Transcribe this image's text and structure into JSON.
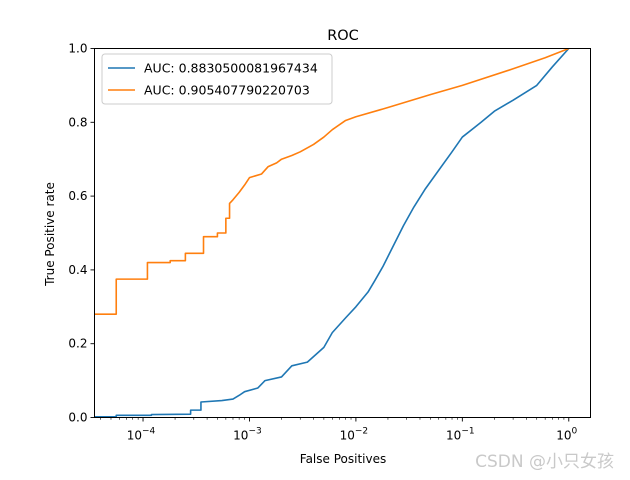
{
  "chart_data": {
    "type": "line",
    "title": "ROC",
    "xlabel": "False Positives",
    "ylabel": "True Positive rate",
    "xscale": "log",
    "xlim": [
      3.5e-05,
      1.6
    ],
    "ylim": [
      0.0,
      1.0
    ],
    "grid": false,
    "legend_position": "top-left",
    "x_ticks": [
      {
        "value": 0.0001,
        "base": "10",
        "exp": "−4"
      },
      {
        "value": 0.001,
        "base": "10",
        "exp": "−3"
      },
      {
        "value": 0.01,
        "base": "10",
        "exp": "−2"
      },
      {
        "value": 0.1,
        "base": "10",
        "exp": "−1"
      },
      {
        "value": 1,
        "base": "10",
        "exp": "0"
      }
    ],
    "y_ticks": [
      {
        "value": 0.0,
        "label": "0.0"
      },
      {
        "value": 0.2,
        "label": "0.2"
      },
      {
        "value": 0.4,
        "label": "0.4"
      },
      {
        "value": 0.6,
        "label": "0.6"
      },
      {
        "value": 0.8,
        "label": "0.8"
      },
      {
        "value": 1.0,
        "label": "1.0"
      }
    ],
    "series": [
      {
        "name": "AUC: 0.8830500081967434",
        "color": "#1f77b4",
        "points": [
          [
            3.5e-05,
            0.002
          ],
          [
            5.6e-05,
            0.002
          ],
          [
            5.6e-05,
            0.006
          ],
          [
            0.00012,
            0.006
          ],
          [
            0.00012,
            0.008
          ],
          [
            0.00028,
            0.009
          ],
          [
            0.00028,
            0.02
          ],
          [
            0.00035,
            0.02
          ],
          [
            0.00035,
            0.042
          ],
          [
            0.00055,
            0.046
          ],
          [
            0.0007,
            0.05
          ],
          [
            0.0008,
            0.06
          ],
          [
            0.0009,
            0.07
          ],
          [
            0.0012,
            0.08
          ],
          [
            0.0014,
            0.1
          ],
          [
            0.002,
            0.11
          ],
          [
            0.0025,
            0.14
          ],
          [
            0.0035,
            0.15
          ],
          [
            0.005,
            0.19
          ],
          [
            0.006,
            0.23
          ],
          [
            0.008,
            0.27
          ],
          [
            0.01,
            0.3
          ],
          [
            0.013,
            0.34
          ],
          [
            0.015,
            0.37
          ],
          [
            0.018,
            0.41
          ],
          [
            0.022,
            0.46
          ],
          [
            0.028,
            0.52
          ],
          [
            0.035,
            0.57
          ],
          [
            0.045,
            0.62
          ],
          [
            0.06,
            0.67
          ],
          [
            0.08,
            0.72
          ],
          [
            0.1,
            0.76
          ],
          [
            0.15,
            0.8
          ],
          [
            0.2,
            0.83
          ],
          [
            0.3,
            0.86
          ],
          [
            0.5,
            0.9
          ],
          [
            0.7,
            0.95
          ],
          [
            1.0,
            1.0
          ]
        ]
      },
      {
        "name": "AUC: 0.905407790220703",
        "color": "#ff7f0e",
        "points": [
          [
            3.5e-05,
            0.28
          ],
          [
            5.6e-05,
            0.28
          ],
          [
            5.6e-05,
            0.375
          ],
          [
            0.00011,
            0.375
          ],
          [
            0.00011,
            0.42
          ],
          [
            0.00018,
            0.42
          ],
          [
            0.00018,
            0.425
          ],
          [
            0.00025,
            0.425
          ],
          [
            0.00025,
            0.445
          ],
          [
            0.00037,
            0.445
          ],
          [
            0.00037,
            0.49
          ],
          [
            0.0005,
            0.49
          ],
          [
            0.0005,
            0.5
          ],
          [
            0.0006,
            0.5
          ],
          [
            0.0006,
            0.54
          ],
          [
            0.00065,
            0.54
          ],
          [
            0.00065,
            0.58
          ],
          [
            0.0007,
            0.59
          ],
          [
            0.0008,
            0.61
          ],
          [
            0.0009,
            0.63
          ],
          [
            0.001,
            0.65
          ],
          [
            0.0013,
            0.66
          ],
          [
            0.0015,
            0.68
          ],
          [
            0.0018,
            0.69
          ],
          [
            0.002,
            0.7
          ],
          [
            0.0025,
            0.71
          ],
          [
            0.003,
            0.72
          ],
          [
            0.004,
            0.74
          ],
          [
            0.005,
            0.76
          ],
          [
            0.006,
            0.78
          ],
          [
            0.008,
            0.805
          ],
          [
            0.01,
            0.815
          ],
          [
            0.02,
            0.84
          ],
          [
            0.05,
            0.875
          ],
          [
            0.1,
            0.9
          ],
          [
            0.3,
            0.945
          ],
          [
            0.6,
            0.975
          ],
          [
            1.0,
            1.0
          ]
        ]
      }
    ]
  },
  "watermark": "CSDN @小只女孩"
}
